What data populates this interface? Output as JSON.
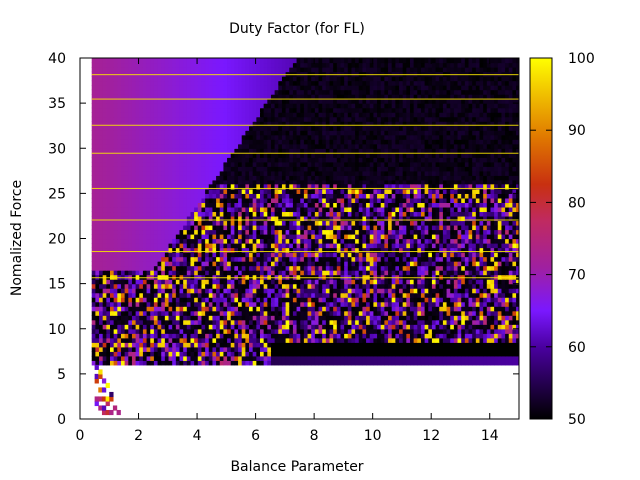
{
  "chart_data": {
    "type": "heatmap",
    "title": "Duty Factor (for FL)",
    "xlabel": "Balance Parameter",
    "ylabel": "Nomalized Force",
    "xlim": [
      0,
      15
    ],
    "ylim": [
      0,
      40
    ],
    "x_ticks": [
      "0",
      "2",
      "4",
      "6",
      "8",
      "10",
      "12",
      "14"
    ],
    "y_ticks": [
      "0",
      "5",
      "10",
      "15",
      "20",
      "25",
      "30",
      "35",
      "40"
    ],
    "colorbar": {
      "range": [
        50,
        100
      ],
      "ticks": [
        "50",
        "60",
        "70",
        "80",
        "90",
        "100"
      ],
      "palette": "black-purple-magenta-red-orange-yellow"
    },
    "grid": false,
    "legend": "none",
    "data_x_range": [
      0.4,
      15
    ],
    "regions": [
      {
        "description": "smooth upper-left band, value decreasing to the right",
        "x": [
          0.4,
          7.4
        ],
        "y": [
          16.5,
          40
        ],
        "value_range": [
          72,
          61
        ]
      },
      {
        "description": "boundary line of smooth band",
        "points": [
          [
            7.4,
            40
          ],
          [
            2.5,
            16.5
          ]
        ]
      },
      {
        "description": "dark upper-right region",
        "x": [
          7.4,
          15
        ],
        "y": [
          26,
          40
        ],
        "value_range": [
          50,
          53
        ]
      },
      {
        "description": "noisy region",
        "y": [
          6,
          26
        ],
        "value_range": [
          50,
          100
        ]
      },
      {
        "description": "sparse low-force cells",
        "x": [
          0.4,
          1.3
        ],
        "y": [
          0.5,
          5
        ],
        "value_range": [
          50,
          100
        ]
      }
    ]
  }
}
